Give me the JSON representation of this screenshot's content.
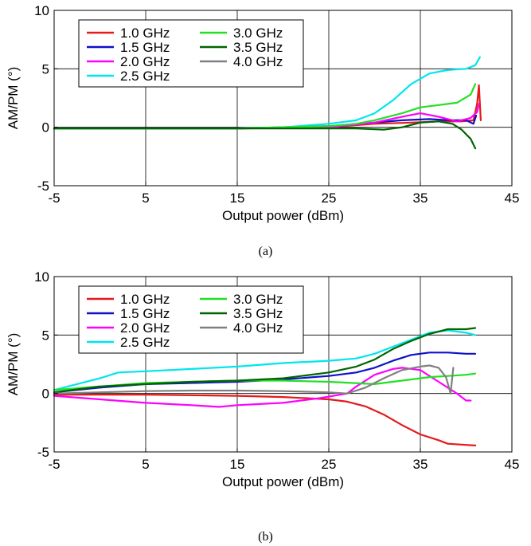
{
  "chart_data": [
    {
      "type": "line",
      "caption": "(a)",
      "xlabel": "Output power (dBm)",
      "ylabel": "AM/PM (°)",
      "xlim": [
        -5,
        45
      ],
      "ylim": [
        -5,
        10
      ],
      "xticks": [
        -5,
        5,
        15,
        25,
        35,
        45
      ],
      "yticks": [
        -5,
        0,
        5,
        10
      ],
      "grid": true,
      "legend": "top-left",
      "series": [
        {
          "name": "1.0 GHz",
          "color": "#e41a1c",
          "points": [
            [
              -5,
              -0.1
            ],
            [
              5,
              -0.1
            ],
            [
              15,
              -0.1
            ],
            [
              25,
              0.0
            ],
            [
              30,
              0.3
            ],
            [
              34,
              0.4
            ],
            [
              37,
              0.5
            ],
            [
              39.5,
              0.5
            ],
            [
              40.8,
              0.6
            ],
            [
              41.2,
              2.0
            ],
            [
              41.4,
              3.6
            ],
            [
              41.6,
              0.6
            ]
          ]
        },
        {
          "name": "1.5 GHz",
          "color": "#1010c8",
          "points": [
            [
              -5,
              -0.1
            ],
            [
              5,
              -0.1
            ],
            [
              15,
              -0.1
            ],
            [
              25,
              0.1
            ],
            [
              30,
              0.4
            ],
            [
              33,
              0.6
            ],
            [
              36,
              0.7
            ],
            [
              38,
              0.6
            ],
            [
              40,
              0.6
            ],
            [
              40.8,
              0.3
            ],
            [
              41.1,
              1.0
            ]
          ]
        },
        {
          "name": "2.0 GHz",
          "color": "#ff00ff",
          "points": [
            [
              -5,
              -0.1
            ],
            [
              5,
              -0.1
            ],
            [
              15,
              -0.1
            ],
            [
              25,
              0.0
            ],
            [
              30,
              0.4
            ],
            [
              33,
              0.9
            ],
            [
              35,
              1.2
            ],
            [
              37,
              0.9
            ],
            [
              39,
              0.5
            ],
            [
              40.5,
              0.8
            ],
            [
              41.2,
              1.3
            ],
            [
              41.4,
              2.0
            ]
          ]
        },
        {
          "name": "2.5 GHz",
          "color": "#00e5ee",
          "points": [
            [
              -5,
              -0.1
            ],
            [
              5,
              -0.1
            ],
            [
              15,
              -0.1
            ],
            [
              20,
              0.0
            ],
            [
              25,
              0.3
            ],
            [
              28,
              0.6
            ],
            [
              30,
              1.2
            ],
            [
              32,
              2.3
            ],
            [
              34,
              3.7
            ],
            [
              36,
              4.6
            ],
            [
              38,
              4.9
            ],
            [
              40,
              5.0
            ],
            [
              41,
              5.3
            ],
            [
              41.5,
              6.0
            ]
          ]
        },
        {
          "name": "3.0 GHz",
          "color": "#22e022",
          "points": [
            [
              -5,
              -0.1
            ],
            [
              5,
              -0.1
            ],
            [
              15,
              -0.1
            ],
            [
              25,
              0.1
            ],
            [
              28,
              0.3
            ],
            [
              30,
              0.6
            ],
            [
              33,
              1.2
            ],
            [
              35,
              1.7
            ],
            [
              37,
              1.9
            ],
            [
              39,
              2.1
            ],
            [
              40.5,
              2.8
            ],
            [
              41,
              3.7
            ]
          ]
        },
        {
          "name": "3.5 GHz",
          "color": "#006400",
          "points": [
            [
              -5,
              -0.1
            ],
            [
              5,
              -0.1
            ],
            [
              15,
              -0.1
            ],
            [
              25,
              -0.1
            ],
            [
              28,
              -0.1
            ],
            [
              31,
              -0.2
            ],
            [
              33,
              0.0
            ],
            [
              35,
              0.4
            ],
            [
              37,
              0.5
            ],
            [
              38.5,
              0.3
            ],
            [
              39.5,
              -0.2
            ],
            [
              40.5,
              -1.0
            ],
            [
              41,
              -1.8
            ]
          ]
        },
        {
          "name": "4.0 GHz",
          "color": "#808080",
          "points": []
        }
      ]
    },
    {
      "type": "line",
      "caption": "(b)",
      "xlabel": "Output power (dBm)",
      "ylabel": "AM/PM (°)",
      "xlim": [
        -5,
        45
      ],
      "ylim": [
        -5,
        10
      ],
      "xticks": [
        -5,
        5,
        15,
        25,
        35,
        45
      ],
      "yticks": [
        -5,
        0,
        5,
        10
      ],
      "grid": true,
      "legend": "top-left",
      "series": [
        {
          "name": "1.0 GHz",
          "color": "#e41a1c",
          "points": [
            [
              -5,
              -0.1
            ],
            [
              5,
              -0.1
            ],
            [
              15,
              -0.2
            ],
            [
              20,
              -0.3
            ],
            [
              25,
              -0.5
            ],
            [
              27,
              -0.7
            ],
            [
              29,
              -1.1
            ],
            [
              31,
              -1.8
            ],
            [
              33,
              -2.7
            ],
            [
              35,
              -3.5
            ],
            [
              37,
              -4.0
            ],
            [
              38,
              -4.3
            ],
            [
              40,
              -4.4
            ],
            [
              41,
              -4.45
            ]
          ]
        },
        {
          "name": "1.5 GHz",
          "color": "#1010c8",
          "points": [
            [
              -5,
              0.1
            ],
            [
              0,
              0.5
            ],
            [
              5,
              0.8
            ],
            [
              10,
              0.9
            ],
            [
              15,
              1.0
            ],
            [
              20,
              1.2
            ],
            [
              25,
              1.5
            ],
            [
              28,
              1.8
            ],
            [
              30,
              2.2
            ],
            [
              32,
              2.8
            ],
            [
              34,
              3.3
            ],
            [
              36,
              3.5
            ],
            [
              38,
              3.5
            ],
            [
              40,
              3.4
            ],
            [
              41,
              3.4
            ]
          ]
        },
        {
          "name": "2.0 GHz",
          "color": "#ff00ff",
          "points": [
            [
              -5,
              -0.2
            ],
            [
              0,
              -0.5
            ],
            [
              5,
              -0.8
            ],
            [
              10,
              -1.0
            ],
            [
              13,
              -1.15
            ],
            [
              15,
              -1.0
            ],
            [
              20,
              -0.8
            ],
            [
              24,
              -0.4
            ],
            [
              27,
              0.0
            ],
            [
              28,
              0.6
            ],
            [
              30,
              1.6
            ],
            [
              32,
              2.1
            ],
            [
              33,
              2.2
            ],
            [
              35,
              2.0
            ],
            [
              37,
              1.0
            ],
            [
              39,
              0.0
            ],
            [
              40,
              -0.6
            ],
            [
              40.5,
              -0.6
            ]
          ]
        },
        {
          "name": "2.5 GHz",
          "color": "#00e5ee",
          "points": [
            [
              -5,
              0.3
            ],
            [
              0,
              1.3
            ],
            [
              2,
              1.8
            ],
            [
              5,
              1.9
            ],
            [
              10,
              2.1
            ],
            [
              15,
              2.3
            ],
            [
              20,
              2.6
            ],
            [
              25,
              2.8
            ],
            [
              28,
              3.0
            ],
            [
              30,
              3.4
            ],
            [
              32,
              4.0
            ],
            [
              34,
              4.6
            ],
            [
              36,
              5.2
            ],
            [
              38,
              5.4
            ],
            [
              40,
              5.2
            ],
            [
              41,
              5.0
            ]
          ]
        },
        {
          "name": "3.0 GHz",
          "color": "#22e022",
          "points": [
            [
              -5,
              0.3
            ],
            [
              0,
              0.6
            ],
            [
              5,
              0.9
            ],
            [
              10,
              1.0
            ],
            [
              15,
              1.1
            ],
            [
              20,
              1.1
            ],
            [
              25,
              1.0
            ],
            [
              30,
              0.8
            ],
            [
              33,
              1.1
            ],
            [
              36,
              1.4
            ],
            [
              38,
              1.5
            ],
            [
              40,
              1.6
            ],
            [
              41,
              1.7
            ]
          ]
        },
        {
          "name": "3.5 GHz",
          "color": "#006400",
          "points": [
            [
              -5,
              0.1
            ],
            [
              0,
              0.6
            ],
            [
              5,
              0.8
            ],
            [
              10,
              1.0
            ],
            [
              15,
              1.1
            ],
            [
              20,
              1.3
            ],
            [
              22,
              1.5
            ],
            [
              25,
              1.8
            ],
            [
              28,
              2.3
            ],
            [
              30,
              2.9
            ],
            [
              32,
              3.8
            ],
            [
              34,
              4.5
            ],
            [
              36,
              5.1
            ],
            [
              38,
              5.5
            ],
            [
              40,
              5.5
            ],
            [
              41,
              5.6
            ]
          ]
        },
        {
          "name": "4.0 GHz",
          "color": "#808080",
          "points": [
            [
              -5,
              0.0
            ],
            [
              0,
              0.1
            ],
            [
              5,
              0.2
            ],
            [
              10,
              0.25
            ],
            [
              15,
              0.25
            ],
            [
              20,
              0.2
            ],
            [
              25,
              0.1
            ],
            [
              27,
              0.0
            ],
            [
              29,
              0.5
            ],
            [
              31,
              1.3
            ],
            [
              33,
              2.0
            ],
            [
              35,
              2.3
            ],
            [
              36,
              2.4
            ],
            [
              37,
              2.2
            ],
            [
              37.8,
              1.4
            ],
            [
              38.3,
              0.0
            ],
            [
              38.6,
              2.2
            ]
          ]
        }
      ]
    }
  ]
}
